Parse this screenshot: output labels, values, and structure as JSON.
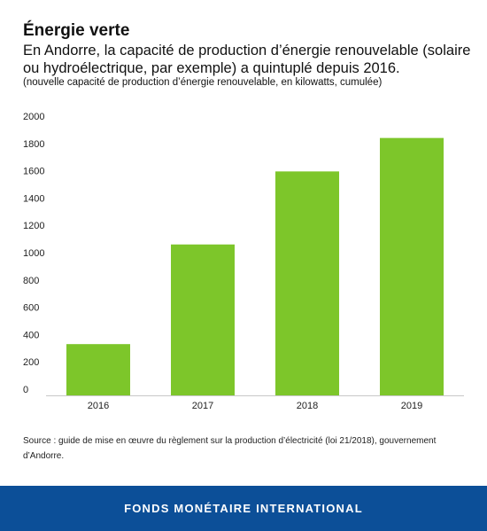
{
  "header": {
    "title": "Énergie verte",
    "subtitle": "En Andorre, la capacité de production d’énergie renouvelable (solaire ou hydroélectrique, par exemple) a quintuplé depuis 2016.",
    "note": "(nouvelle capacité de production d’énergie renouvelable, en kilowatts, cumulée)"
  },
  "chart_data": {
    "type": "bar",
    "categories": [
      "2016",
      "2017",
      "2018",
      "2019"
    ],
    "values": [
      330,
      1060,
      1595,
      1840
    ],
    "ylim": [
      0,
      2000
    ],
    "yticks": [
      0,
      200,
      400,
      600,
      800,
      1000,
      1200,
      1400,
      1600,
      1800,
      2000
    ],
    "grid": false,
    "bar_color": "#7dc62a",
    "axis_color": "#c8c8c8"
  },
  "source": "Source : guide de mise en œuvre du règlement sur la production d’électricité (loi 21/2018), gouvernement d’Andorre.",
  "footer": {
    "label": "FONDS MONÉTAIRE INTERNATIONAL",
    "bg_color": "#0c4f98"
  }
}
